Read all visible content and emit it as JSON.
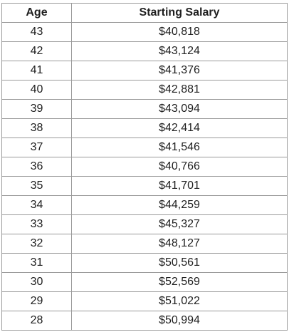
{
  "table": {
    "headers": {
      "age": "Age",
      "salary": "Starting Salary"
    },
    "rows": [
      {
        "age": "43",
        "salary": "$40,818"
      },
      {
        "age": "42",
        "salary": "$43,124"
      },
      {
        "age": "41",
        "salary": "$41,376"
      },
      {
        "age": "40",
        "salary": "$42,881"
      },
      {
        "age": "39",
        "salary": "$43,094"
      },
      {
        "age": "38",
        "salary": "$42,414"
      },
      {
        "age": "37",
        "salary": "$41,546"
      },
      {
        "age": "36",
        "salary": "$40,766"
      },
      {
        "age": "35",
        "salary": "$41,701"
      },
      {
        "age": "34",
        "salary": "$44,259"
      },
      {
        "age": "33",
        "salary": "$45,327"
      },
      {
        "age": "32",
        "salary": "$48,127"
      },
      {
        "age": "31",
        "salary": "$50,561"
      },
      {
        "age": "30",
        "salary": "$52,569"
      },
      {
        "age": "29",
        "salary": "$51,022"
      },
      {
        "age": "28",
        "salary": "$50,994"
      }
    ]
  }
}
